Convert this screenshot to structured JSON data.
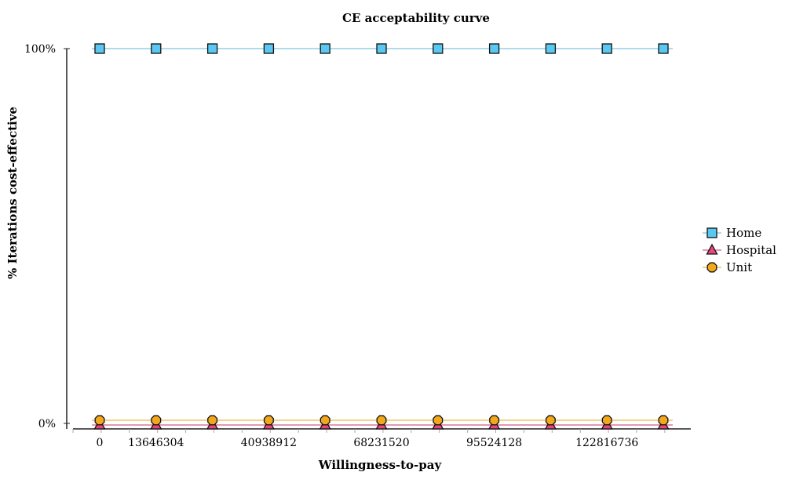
{
  "chart_data": {
    "type": "line",
    "title": "CE acceptability curve",
    "xlabel": "Willingness-to-pay",
    "ylabel": "% Iterations cost-effective",
    "x": [
      0,
      13646304,
      27292608,
      40938912,
      54585216,
      68231520,
      81877824,
      95524128,
      109170432,
      122816736,
      136463040
    ],
    "x_tick_labels": [
      "0",
      "13646304",
      "40938912",
      "68231520",
      "95524128",
      "122816736"
    ],
    "x_tick_values": [
      0,
      13646304,
      40938912,
      68231520,
      95524128,
      122816736
    ],
    "y_tick_labels": [
      "0%",
      "100%"
    ],
    "y_tick_values": [
      0,
      100
    ],
    "ylim": [
      0,
      100
    ],
    "grid": false,
    "legend_position": "right",
    "series": [
      {
        "name": "Home",
        "marker": "square",
        "color": "#5BC8F2",
        "line_color": "#7EC8E3",
        "values": [
          100,
          100,
          100,
          100,
          100,
          100,
          100,
          100,
          100,
          100,
          100
        ]
      },
      {
        "name": "Hospital",
        "marker": "triangle",
        "color": "#E8467C",
        "line_color": "#D45C8C",
        "values": [
          0,
          0,
          0,
          0,
          0,
          0,
          0,
          0,
          0,
          0,
          0
        ]
      },
      {
        "name": "Unit",
        "marker": "circle",
        "color": "#F2A81D",
        "line_color": "#E8B84A",
        "values": [
          0,
          0,
          0,
          0,
          0,
          0,
          0,
          0,
          0,
          0,
          0
        ]
      }
    ]
  }
}
